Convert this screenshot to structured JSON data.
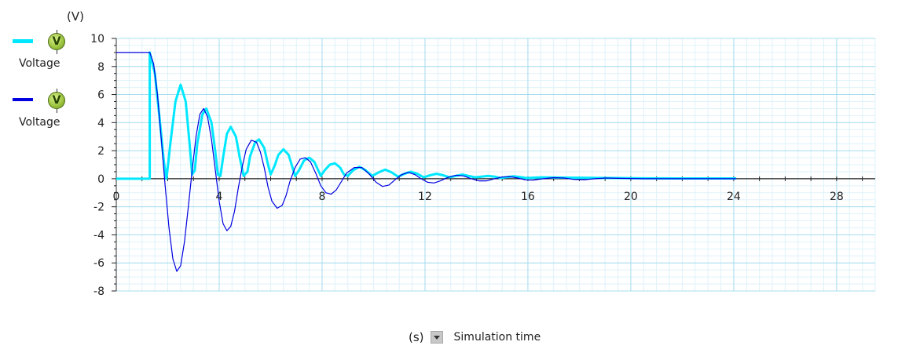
{
  "legend": {
    "items": [
      {
        "label": "Voltage",
        "color": "#00e8ff",
        "icon": "voltmeter-icon",
        "icon_letter": "V"
      },
      {
        "label": "Voltage",
        "color": "#0000e0",
        "icon": "voltmeter-icon",
        "icon_letter": "V"
      }
    ]
  },
  "chart_data": {
    "type": "line",
    "ylabel": "(V)",
    "xlabel": "Simulation time",
    "x_unit": "(s)",
    "xlim": [
      0,
      29.5
    ],
    "ylim": [
      -8,
      10
    ],
    "x_ticks": [
      0,
      4,
      8,
      12,
      16,
      20,
      24,
      28
    ],
    "y_ticks": [
      10,
      8,
      6,
      4,
      2,
      0,
      -2,
      -4,
      -6,
      -8
    ],
    "grid": true,
    "legend_position": "left",
    "series": [
      {
        "color": "#00e8ff",
        "points": [
          [
            0,
            0
          ],
          [
            1.3,
            0
          ],
          [
            1.3,
            9.0
          ],
          [
            1.5,
            7.5
          ],
          [
            1.7,
            4.0
          ],
          [
            1.85,
            1.2
          ],
          [
            1.95,
            0
          ],
          [
            2.1,
            2.5
          ],
          [
            2.3,
            5.5
          ],
          [
            2.5,
            6.7
          ],
          [
            2.7,
            5.5
          ],
          [
            2.85,
            2.5
          ],
          [
            2.95,
            0.3
          ],
          [
            3.05,
            0.6
          ],
          [
            3.15,
            2.5
          ],
          [
            3.35,
            4.6
          ],
          [
            3.5,
            5.0
          ],
          [
            3.7,
            4.0
          ],
          [
            3.85,
            1.9
          ],
          [
            3.95,
            0.3
          ],
          [
            4.05,
            0.2
          ],
          [
            4.15,
            1.5
          ],
          [
            4.3,
            3.2
          ],
          [
            4.45,
            3.7
          ],
          [
            4.65,
            3.0
          ],
          [
            4.8,
            1.5
          ],
          [
            4.95,
            0.2
          ],
          [
            5.1,
            0.5
          ],
          [
            5.2,
            1.6
          ],
          [
            5.4,
            2.6
          ],
          [
            5.55,
            2.8
          ],
          [
            5.75,
            2.2
          ],
          [
            5.9,
            1.0
          ],
          [
            6.0,
            0.3
          ],
          [
            6.15,
            0.9
          ],
          [
            6.3,
            1.7
          ],
          [
            6.5,
            2.1
          ],
          [
            6.7,
            1.7
          ],
          [
            6.85,
            0.8
          ],
          [
            6.95,
            0.2
          ],
          [
            7.1,
            0.6
          ],
          [
            7.3,
            1.3
          ],
          [
            7.5,
            1.5
          ],
          [
            7.7,
            1.2
          ],
          [
            7.85,
            0.6
          ],
          [
            7.95,
            0.2
          ],
          [
            8.1,
            0.6
          ],
          [
            8.3,
            1.0
          ],
          [
            8.5,
            1.1
          ],
          [
            8.7,
            0.8
          ],
          [
            8.85,
            0.3
          ],
          [
            9.0,
            0.2
          ],
          [
            9.2,
            0.6
          ],
          [
            9.45,
            0.85
          ],
          [
            9.7,
            0.6
          ],
          [
            9.95,
            0.2
          ],
          [
            10.2,
            0.45
          ],
          [
            10.45,
            0.65
          ],
          [
            10.7,
            0.45
          ],
          [
            10.95,
            0.15
          ],
          [
            11.2,
            0.35
          ],
          [
            11.45,
            0.5
          ],
          [
            11.7,
            0.35
          ],
          [
            11.95,
            0.1
          ],
          [
            12.2,
            0.25
          ],
          [
            12.45,
            0.35
          ],
          [
            12.7,
            0.25
          ],
          [
            12.95,
            0.1
          ],
          [
            13.2,
            0.2
          ],
          [
            13.45,
            0.3
          ],
          [
            13.7,
            0.2
          ],
          [
            13.95,
            0.1
          ],
          [
            14.2,
            0.15
          ],
          [
            14.45,
            0.2
          ],
          [
            14.7,
            0.15
          ],
          [
            14.95,
            0.05
          ],
          [
            15.2,
            0.12
          ],
          [
            15.45,
            0.17
          ],
          [
            15.7,
            0.12
          ],
          [
            15.95,
            0.05
          ],
          [
            16.5,
            0.1
          ],
          [
            17.5,
            0.08
          ],
          [
            18.5,
            0.06
          ],
          [
            19.5,
            0.05
          ],
          [
            20.5,
            0.03
          ],
          [
            22,
            0.02
          ],
          [
            24.1,
            0.02
          ]
        ]
      },
      {
        "color": "#0000e0",
        "points": [
          [
            0,
            9.0
          ],
          [
            1.3,
            9.0
          ],
          [
            1.45,
            8.2
          ],
          [
            1.6,
            6.0
          ],
          [
            1.75,
            2.8
          ],
          [
            1.9,
            -0.5
          ],
          [
            2.05,
            -3.5
          ],
          [
            2.2,
            -5.7
          ],
          [
            2.35,
            -6.6
          ],
          [
            2.5,
            -6.2
          ],
          [
            2.65,
            -4.5
          ],
          [
            2.8,
            -2.0
          ],
          [
            2.95,
            0.6
          ],
          [
            3.1,
            3.0
          ],
          [
            3.25,
            4.6
          ],
          [
            3.4,
            5.0
          ],
          [
            3.55,
            4.4
          ],
          [
            3.7,
            2.8
          ],
          [
            3.85,
            0.6
          ],
          [
            4.0,
            -1.6
          ],
          [
            4.15,
            -3.2
          ],
          [
            4.3,
            -3.7
          ],
          [
            4.45,
            -3.4
          ],
          [
            4.6,
            -2.3
          ],
          [
            4.75,
            -0.6
          ],
          [
            4.9,
            0.9
          ],
          [
            5.05,
            2.1
          ],
          [
            5.25,
            2.75
          ],
          [
            5.45,
            2.6
          ],
          [
            5.6,
            1.9
          ],
          [
            5.75,
            0.8
          ],
          [
            5.9,
            -0.6
          ],
          [
            6.05,
            -1.6
          ],
          [
            6.25,
            -2.1
          ],
          [
            6.45,
            -1.9
          ],
          [
            6.6,
            -1.2
          ],
          [
            6.75,
            -0.2
          ],
          [
            6.95,
            0.8
          ],
          [
            7.15,
            1.4
          ],
          [
            7.35,
            1.5
          ],
          [
            7.55,
            1.2
          ],
          [
            7.75,
            0.4
          ],
          [
            7.95,
            -0.5
          ],
          [
            8.15,
            -1.0
          ],
          [
            8.35,
            -1.1
          ],
          [
            8.55,
            -0.8
          ],
          [
            8.75,
            -0.2
          ],
          [
            8.95,
            0.4
          ],
          [
            9.25,
            0.8
          ],
          [
            9.55,
            0.8
          ],
          [
            9.85,
            0.3
          ],
          [
            10.1,
            -0.25
          ],
          [
            10.35,
            -0.55
          ],
          [
            10.6,
            -0.45
          ],
          [
            10.85,
            -0.05
          ],
          [
            11.1,
            0.3
          ],
          [
            11.35,
            0.45
          ],
          [
            11.6,
            0.3
          ],
          [
            11.85,
            0.0
          ],
          [
            12.1,
            -0.25
          ],
          [
            12.35,
            -0.3
          ],
          [
            12.6,
            -0.15
          ],
          [
            12.9,
            0.1
          ],
          [
            13.2,
            0.25
          ],
          [
            13.5,
            0.2
          ],
          [
            13.8,
            0.0
          ],
          [
            14.1,
            -0.15
          ],
          [
            14.4,
            -0.15
          ],
          [
            14.7,
            0.0
          ],
          [
            15.0,
            0.12
          ],
          [
            15.3,
            0.15
          ],
          [
            15.6,
            0.05
          ],
          [
            15.9,
            -0.08
          ],
          [
            16.2,
            -0.1
          ],
          [
            16.6,
            0.0
          ],
          [
            17.0,
            0.08
          ],
          [
            17.4,
            0.05
          ],
          [
            17.8,
            -0.05
          ],
          [
            18.2,
            -0.07
          ],
          [
            18.6,
            0.0
          ],
          [
            19.0,
            0.05
          ],
          [
            19.5,
            0.03
          ],
          [
            20.5,
            0.0
          ],
          [
            22,
            0.0
          ],
          [
            24.1,
            0.0
          ]
        ]
      }
    ]
  }
}
